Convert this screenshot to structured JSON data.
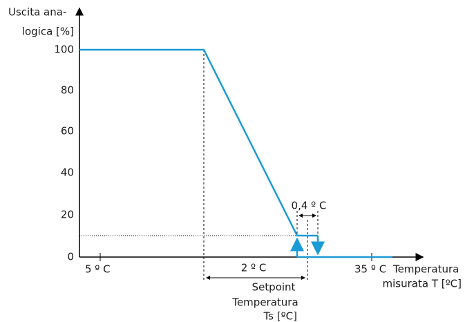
{
  "y_axis": {
    "label_line1": "Uscita ana-",
    "label_line2": "logica [%]",
    "ticks": [
      100,
      80,
      60,
      40,
      20,
      0
    ]
  },
  "x_axis": {
    "label_line1": "Temperatura",
    "label_line2": "misurata T [ºC]",
    "left_label": "5 º C",
    "right_label": "35 º C"
  },
  "annotations": {
    "band": "2 º C",
    "hysteresis": "0,4 º C",
    "setpoint_line1": "Setpoint",
    "setpoint_line2": "Temperatura",
    "setpoint_line3": "Ts [ºC]"
  }
}
